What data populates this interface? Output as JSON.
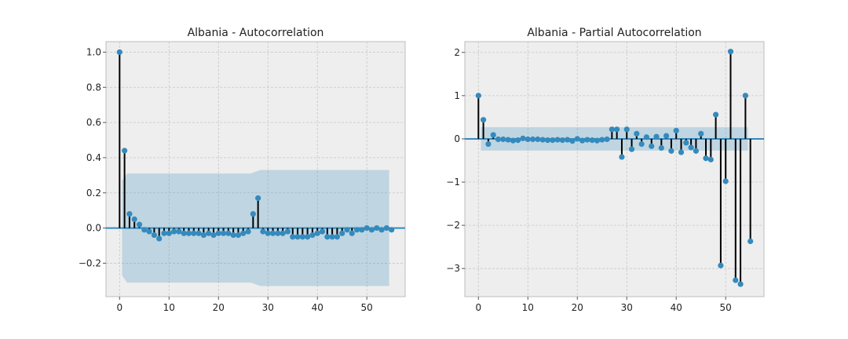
{
  "chart_data": [
    {
      "type": "stem",
      "title": "Albania - Autocorrelation",
      "xlim": [
        -2.75,
        57.75
      ],
      "ylim": [
        -0.39,
        1.06
      ],
      "xticks": [
        0,
        10,
        20,
        30,
        40,
        50
      ],
      "yticks": [
        -0.2,
        0.0,
        0.2,
        0.4,
        0.6,
        0.8,
        1.0
      ],
      "ytick_labels": [
        "−0.2",
        "0.0",
        "0.2",
        "0.4",
        "0.6",
        "0.8",
        "1.0"
      ],
      "xtick_labels": [
        "0",
        "10",
        "20",
        "30",
        "40",
        "50"
      ],
      "grid": true,
      "lags": [
        0,
        1,
        2,
        3,
        4,
        5,
        6,
        7,
        8,
        9,
        10,
        11,
        12,
        13,
        14,
        15,
        16,
        17,
        18,
        19,
        20,
        21,
        22,
        23,
        24,
        25,
        26,
        27,
        28,
        29,
        30,
        31,
        32,
        33,
        34,
        35,
        36,
        37,
        38,
        39,
        40,
        41,
        42,
        43,
        44,
        45,
        46,
        47,
        48,
        49,
        50,
        51,
        52,
        53,
        54,
        55
      ],
      "values": [
        1.0,
        0.44,
        0.08,
        0.05,
        0.02,
        -0.01,
        -0.02,
        -0.04,
        -0.06,
        -0.03,
        -0.03,
        -0.02,
        -0.02,
        -0.03,
        -0.03,
        -0.03,
        -0.03,
        -0.04,
        -0.03,
        -0.04,
        -0.03,
        -0.03,
        -0.03,
        -0.04,
        -0.04,
        -0.03,
        -0.02,
        0.08,
        0.17,
        -0.02,
        -0.03,
        -0.03,
        -0.03,
        -0.03,
        -0.02,
        -0.05,
        -0.05,
        -0.05,
        -0.05,
        -0.04,
        -0.03,
        -0.02,
        -0.05,
        -0.05,
        -0.05,
        -0.03,
        -0.01,
        -0.03,
        -0.01,
        -0.01,
        0.0,
        -0.01,
        0.0,
        -0.01,
        0.0,
        -0.01
      ],
      "confidence_band": {
        "lags": [
          1,
          2,
          5,
          10,
          20,
          27,
          28,
          29,
          35,
          40,
          45,
          50,
          55
        ],
        "upper": [
          0.27,
          0.31,
          0.31,
          0.31,
          0.31,
          0.31,
          0.32,
          0.33,
          0.33,
          0.33,
          0.33,
          0.33,
          0.33
        ],
        "lower": [
          -0.27,
          -0.31,
          -0.31,
          -0.31,
          -0.31,
          -0.31,
          -0.32,
          -0.33,
          -0.33,
          -0.33,
          -0.33,
          -0.33,
          -0.33
        ]
      }
    },
    {
      "type": "stem",
      "title": "Albania - Partial Autocorrelation",
      "xlim": [
        -2.75,
        57.75
      ],
      "ylim": [
        -3.65,
        2.25
      ],
      "xticks": [
        0,
        10,
        20,
        30,
        40,
        50
      ],
      "yticks": [
        -3,
        -2,
        -1,
        0,
        1,
        2
      ],
      "ytick_labels": [
        "−3",
        "−2",
        "−1",
        "0",
        "1",
        "2"
      ],
      "xtick_labels": [
        "0",
        "10",
        "20",
        "30",
        "40",
        "50"
      ],
      "grid": true,
      "lags": [
        0,
        1,
        2,
        3,
        4,
        5,
        6,
        7,
        8,
        9,
        10,
        11,
        12,
        13,
        14,
        15,
        16,
        17,
        18,
        19,
        20,
        21,
        22,
        23,
        24,
        25,
        26,
        27,
        28,
        29,
        30,
        31,
        32,
        33,
        34,
        35,
        36,
        37,
        38,
        39,
        40,
        41,
        42,
        43,
        44,
        45,
        46,
        47,
        48,
        49,
        50,
        51,
        52,
        53,
        54,
        55
      ],
      "values": [
        1.0,
        0.44,
        -0.12,
        0.09,
        -0.01,
        -0.01,
        -0.02,
        -0.04,
        -0.03,
        0.01,
        -0.01,
        -0.01,
        -0.01,
        -0.02,
        -0.03,
        -0.03,
        -0.02,
        -0.03,
        -0.02,
        -0.05,
        0.0,
        -0.04,
        -0.02,
        -0.03,
        -0.04,
        -0.02,
        -0.01,
        0.22,
        0.22,
        -0.42,
        0.22,
        -0.24,
        0.12,
        -0.12,
        0.04,
        -0.17,
        0.05,
        -0.21,
        0.07,
        -0.28,
        0.19,
        -0.31,
        -0.09,
        -0.2,
        -0.28,
        0.12,
        -0.45,
        -0.48,
        0.56,
        -2.93,
        -0.98,
        2.02,
        -3.27,
        -3.36,
        1.0,
        -2.37
      ],
      "confidence_band": {
        "lags": [
          1,
          55
        ],
        "upper": [
          0.27,
          0.27
        ],
        "lower": [
          -0.27,
          -0.27
        ]
      }
    }
  ]
}
